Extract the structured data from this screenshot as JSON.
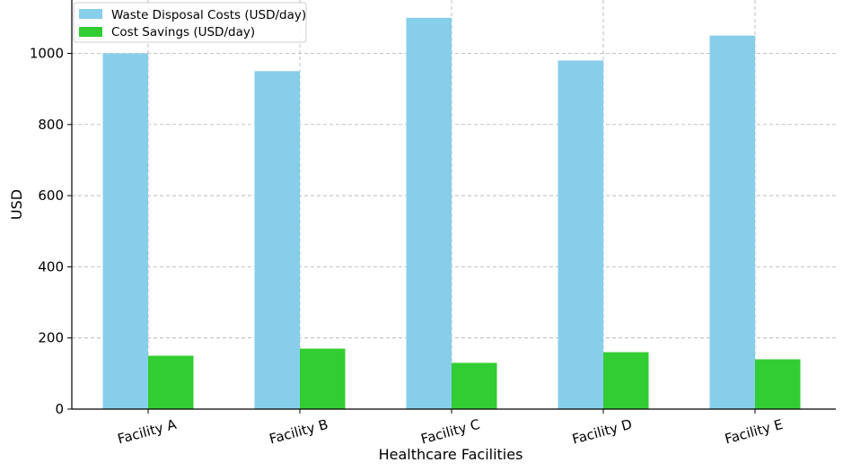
{
  "chart_data": {
    "type": "bar",
    "title": "",
    "xlabel": "Healthcare Facilities",
    "ylabel": "USD",
    "categories": [
      "Facility A",
      "Facility B",
      "Facility C",
      "Facility D",
      "Facility E"
    ],
    "series": [
      {
        "name": "Waste Disposal Costs (USD/day)",
        "color": "#87CEEB",
        "values": [
          1000,
          950,
          1100,
          980,
          1050
        ]
      },
      {
        "name": "Cost Savings (USD/day)",
        "color": "#32CD32",
        "values": [
          150,
          170,
          130,
          160,
          140
        ]
      }
    ],
    "ylim": [
      0,
      1150
    ],
    "yticks": [
      0,
      200,
      400,
      600,
      800,
      1000
    ],
    "grid": true,
    "legend_position": "top-left"
  }
}
